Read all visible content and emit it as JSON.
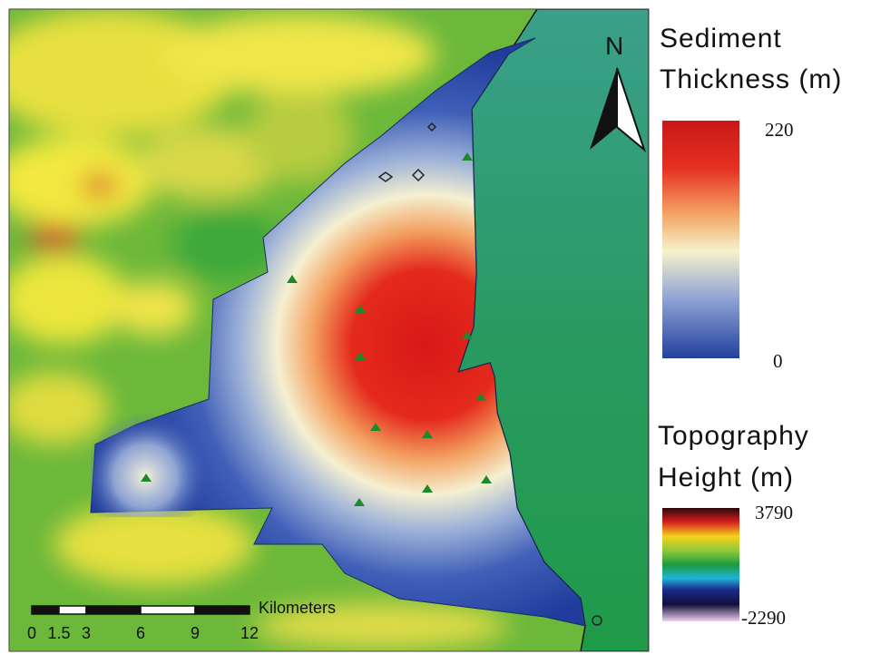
{
  "north_label": "N",
  "legends": [
    {
      "title_lines": [
        "Sediment",
        "Thickness (m)"
      ],
      "max": 220,
      "min": 0
    },
    {
      "title_lines": [
        "Topography",
        "Height (m)"
      ],
      "max": 3790,
      "min": -2290
    }
  ],
  "scale_bar": {
    "unit": "Kilometers",
    "ticks": [
      0,
      1.5,
      3,
      6,
      9,
      12
    ]
  }
}
